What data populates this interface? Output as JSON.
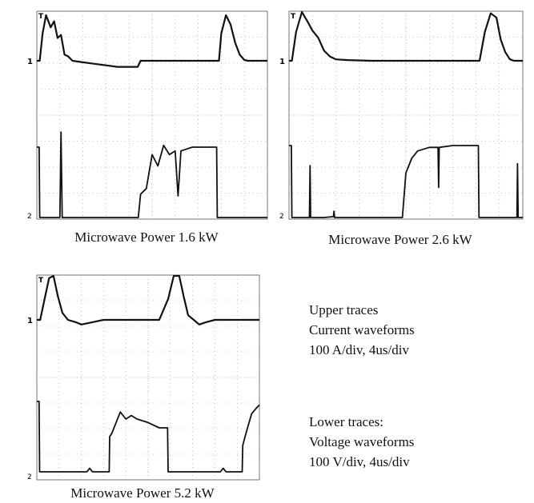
{
  "captions": [
    "Microwave Power 1.6 kW",
    "Microwave Power 2.6 kW",
    "Microwave Power 5.2 kW"
  ],
  "legend": {
    "upper": {
      "title": "Upper traces",
      "line1": "Current waveforms",
      "line2": "100 A/div, 4us/div"
    },
    "lower": {
      "title": "Lower traces:",
      "line1": "Voltage waveforms",
      "line2": "100 V/div, 4us/div"
    }
  },
  "scale": {
    "current_per_div": "100 A/div",
    "voltage_per_div": "100 V/div",
    "time_per_div": "4us/div"
  },
  "markers": {
    "trigger": "T",
    "channel_1": "1",
    "channel_2": "2"
  },
  "chart_data": [
    {
      "type": "line",
      "caption": "Microwave Power 1.6 kW",
      "grid": true,
      "x_divisions": 10,
      "y_divisions": 8,
      "x_unit": "us",
      "xlim": [
        0,
        40
      ],
      "series": [
        {
          "name": "Upper traces",
          "unit": "A",
          "x": [
            0,
            0.5,
            1.0,
            1.6,
            2.4,
            3.0,
            3.6,
            4.2,
            4.8,
            5.4,
            6.2,
            8,
            10,
            12,
            14,
            16,
            17.5,
            18,
            20,
            24,
            28,
            31.2,
            31.6,
            32.0,
            32.8,
            33.6,
            34.4,
            35.2,
            36.0,
            36.6,
            37.2,
            40
          ],
          "y": [
            0,
            0,
            180,
            300,
            220,
            260,
            150,
            170,
            40,
            30,
            0,
            -10,
            -20,
            -30,
            -40,
            -40,
            -40,
            0,
            0,
            0,
            0,
            0,
            0,
            180,
            300,
            240,
            120,
            40,
            5,
            0,
            0,
            0
          ]
        },
        {
          "name": "Lower traces",
          "unit": "V",
          "x": [
            0,
            0.4,
            0.5,
            3.5,
            4.0,
            4.2,
            4.4,
            6,
            7,
            7.3,
            8,
            17.5,
            17.6,
            18,
            19,
            20,
            21,
            22,
            23,
            24,
            24.5,
            25,
            26,
            27,
            28,
            29,
            31,
            31.2,
            31.3,
            40
          ],
          "y": [
            0,
            0,
            -400,
            -400,
            -390,
            80,
            -400,
            -400,
            -380,
            -400,
            -400,
            -400,
            -400,
            -250,
            -220,
            -40,
            -100,
            10,
            -40,
            -20,
            -260,
            -20,
            -10,
            0,
            0,
            0,
            0,
            0,
            -400,
            -400
          ]
        }
      ]
    },
    {
      "type": "line",
      "caption": "Microwave Power 2.6 kW",
      "grid": true,
      "x_divisions": 10,
      "y_divisions": 8,
      "x_unit": "us",
      "xlim": [
        0,
        40
      ],
      "series": [
        {
          "name": "Upper traces",
          "unit": "A",
          "x": [
            0,
            0.5,
            1.2,
            2.2,
            3.2,
            4.0,
            5.0,
            6.0,
            7.0,
            8.0,
            10,
            14,
            18,
            19.3,
            20,
            24,
            30,
            32.6,
            33.5,
            34.5,
            35.5,
            36.2,
            37.0,
            37.8,
            38.5,
            40
          ],
          "y": [
            0,
            0,
            200,
            340,
            270,
            210,
            160,
            70,
            30,
            10,
            5,
            0,
            0,
            0,
            0,
            0,
            0,
            0,
            200,
            330,
            300,
            150,
            60,
            10,
            0,
            0
          ],
          "gaps_as_drop": true
        },
        {
          "name": "Lower traces",
          "unit": "V",
          "x": [
            0,
            0.4,
            0.5,
            3.5,
            3.6,
            3.7,
            6,
            7.6,
            7.7,
            7.8,
            9,
            19.3,
            19.4,
            20,
            21,
            22,
            24,
            25.5,
            25.6,
            25.7,
            28,
            30,
            32.4,
            32.5,
            39,
            39.1,
            39.2,
            40
          ],
          "y": [
            0,
            0,
            -400,
            -400,
            -110,
            -400,
            -400,
            -390,
            -360,
            -400,
            -400,
            -400,
            -400,
            -150,
            -70,
            -30,
            -10,
            -10,
            -230,
            -10,
            0,
            0,
            0,
            -400,
            -400,
            -100,
            -400,
            -400
          ]
        }
      ]
    },
    {
      "type": "line",
      "caption": "Microwave Power 5.2 kW",
      "grid": true,
      "x_divisions": 10,
      "y_divisions": 8,
      "x_unit": "us",
      "xlim": [
        0,
        40
      ],
      "series": [
        {
          "name": "Upper traces",
          "unit": "A",
          "x": [
            0,
            0.6,
            1.4,
            2.2,
            3.0,
            3.8,
            4.6,
            5.6,
            7,
            8,
            10,
            12,
            13.5,
            14,
            16,
            20,
            22,
            23.6,
            24.6,
            25.6,
            26.4,
            27.2,
            28.2,
            29.2,
            30.4,
            32,
            36,
            40
          ],
          "y": [
            0,
            0,
            180,
            360,
            420,
            200,
            60,
            0,
            -20,
            -40,
            -20,
            0,
            0,
            0,
            0,
            0,
            0,
            180,
            380,
            420,
            200,
            40,
            0,
            -40,
            -20,
            0,
            0,
            0
          ]
        },
        {
          "name": "Lower traces",
          "unit": "V",
          "x": [
            0,
            0.4,
            0.5,
            9,
            9.5,
            10,
            13,
            13.1,
            13.5,
            15,
            16,
            17,
            18,
            20,
            22,
            23.5,
            23.6,
            33,
            33.5,
            34,
            36.9,
            37.0,
            37.6,
            38.6,
            39.4,
            40
          ],
          "y": [
            0,
            0,
            -400,
            -400,
            -380,
            -400,
            -400,
            -200,
            -180,
            -60,
            -100,
            -80,
            -100,
            -120,
            -150,
            -150,
            -400,
            -400,
            -380,
            -400,
            -400,
            -250,
            -180,
            -70,
            -40,
            -20
          ]
        }
      ]
    }
  ]
}
